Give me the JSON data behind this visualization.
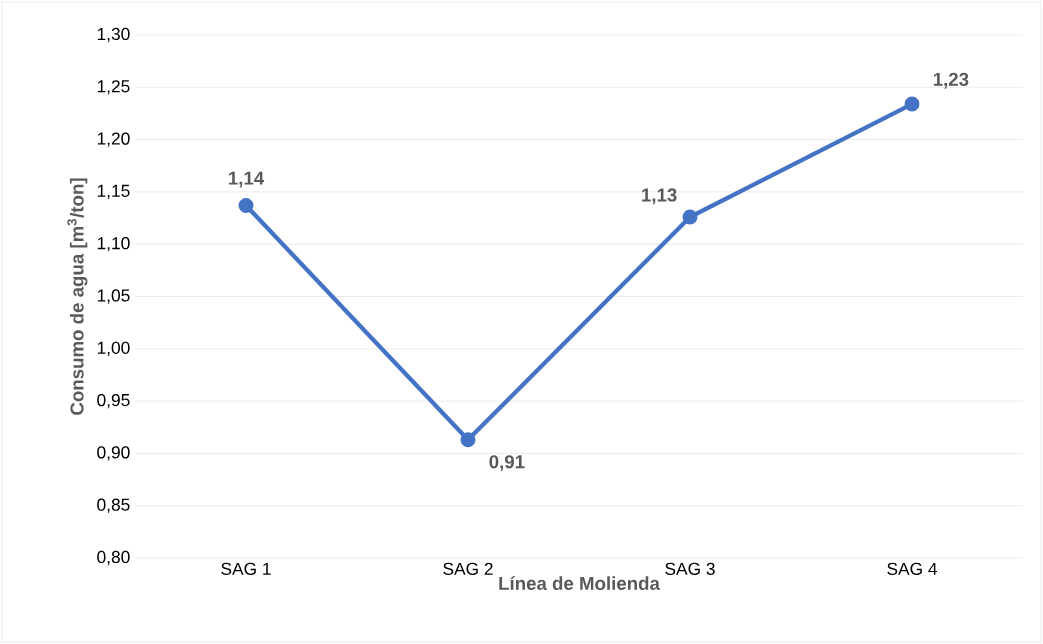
{
  "chart_data": {
    "type": "line",
    "xlabel": "Línea de Molienda",
    "ylabel": "Consumo de agua [m$^{3}$/ton]",
    "categories": [
      "SAG 1",
      "SAG 2",
      "SAG 3",
      "SAG 4"
    ],
    "series": [
      {
        "color": "#4472c4",
        "values": [
          1.137,
          0.913,
          1.126,
          1.234
        ],
        "value_labels": [
          "1,14",
          "0,91",
          "1,13",
          "1,23"
        ]
      }
    ],
    "ylim": [
      0.8,
      1.3
    ],
    "yticks": [
      {
        "value": 0.8,
        "label": "0,80"
      },
      {
        "value": 0.85,
        "label": "0,85"
      },
      {
        "value": 0.9,
        "label": "0,90"
      },
      {
        "value": 0.95,
        "label": "0,95"
      },
      {
        "value": 1.0,
        "label": "1,00"
      },
      {
        "value": 1.05,
        "label": "1,05"
      },
      {
        "value": 1.1,
        "label": "1,10"
      },
      {
        "value": 1.15,
        "label": "1,15"
      },
      {
        "value": 1.2,
        "label": "1,20"
      },
      {
        "value": 1.25,
        "label": "1,25"
      },
      {
        "value": 1.3,
        "label": "1,30"
      }
    ],
    "grid": "y",
    "marker": "circle",
    "line_style": "solid"
  }
}
